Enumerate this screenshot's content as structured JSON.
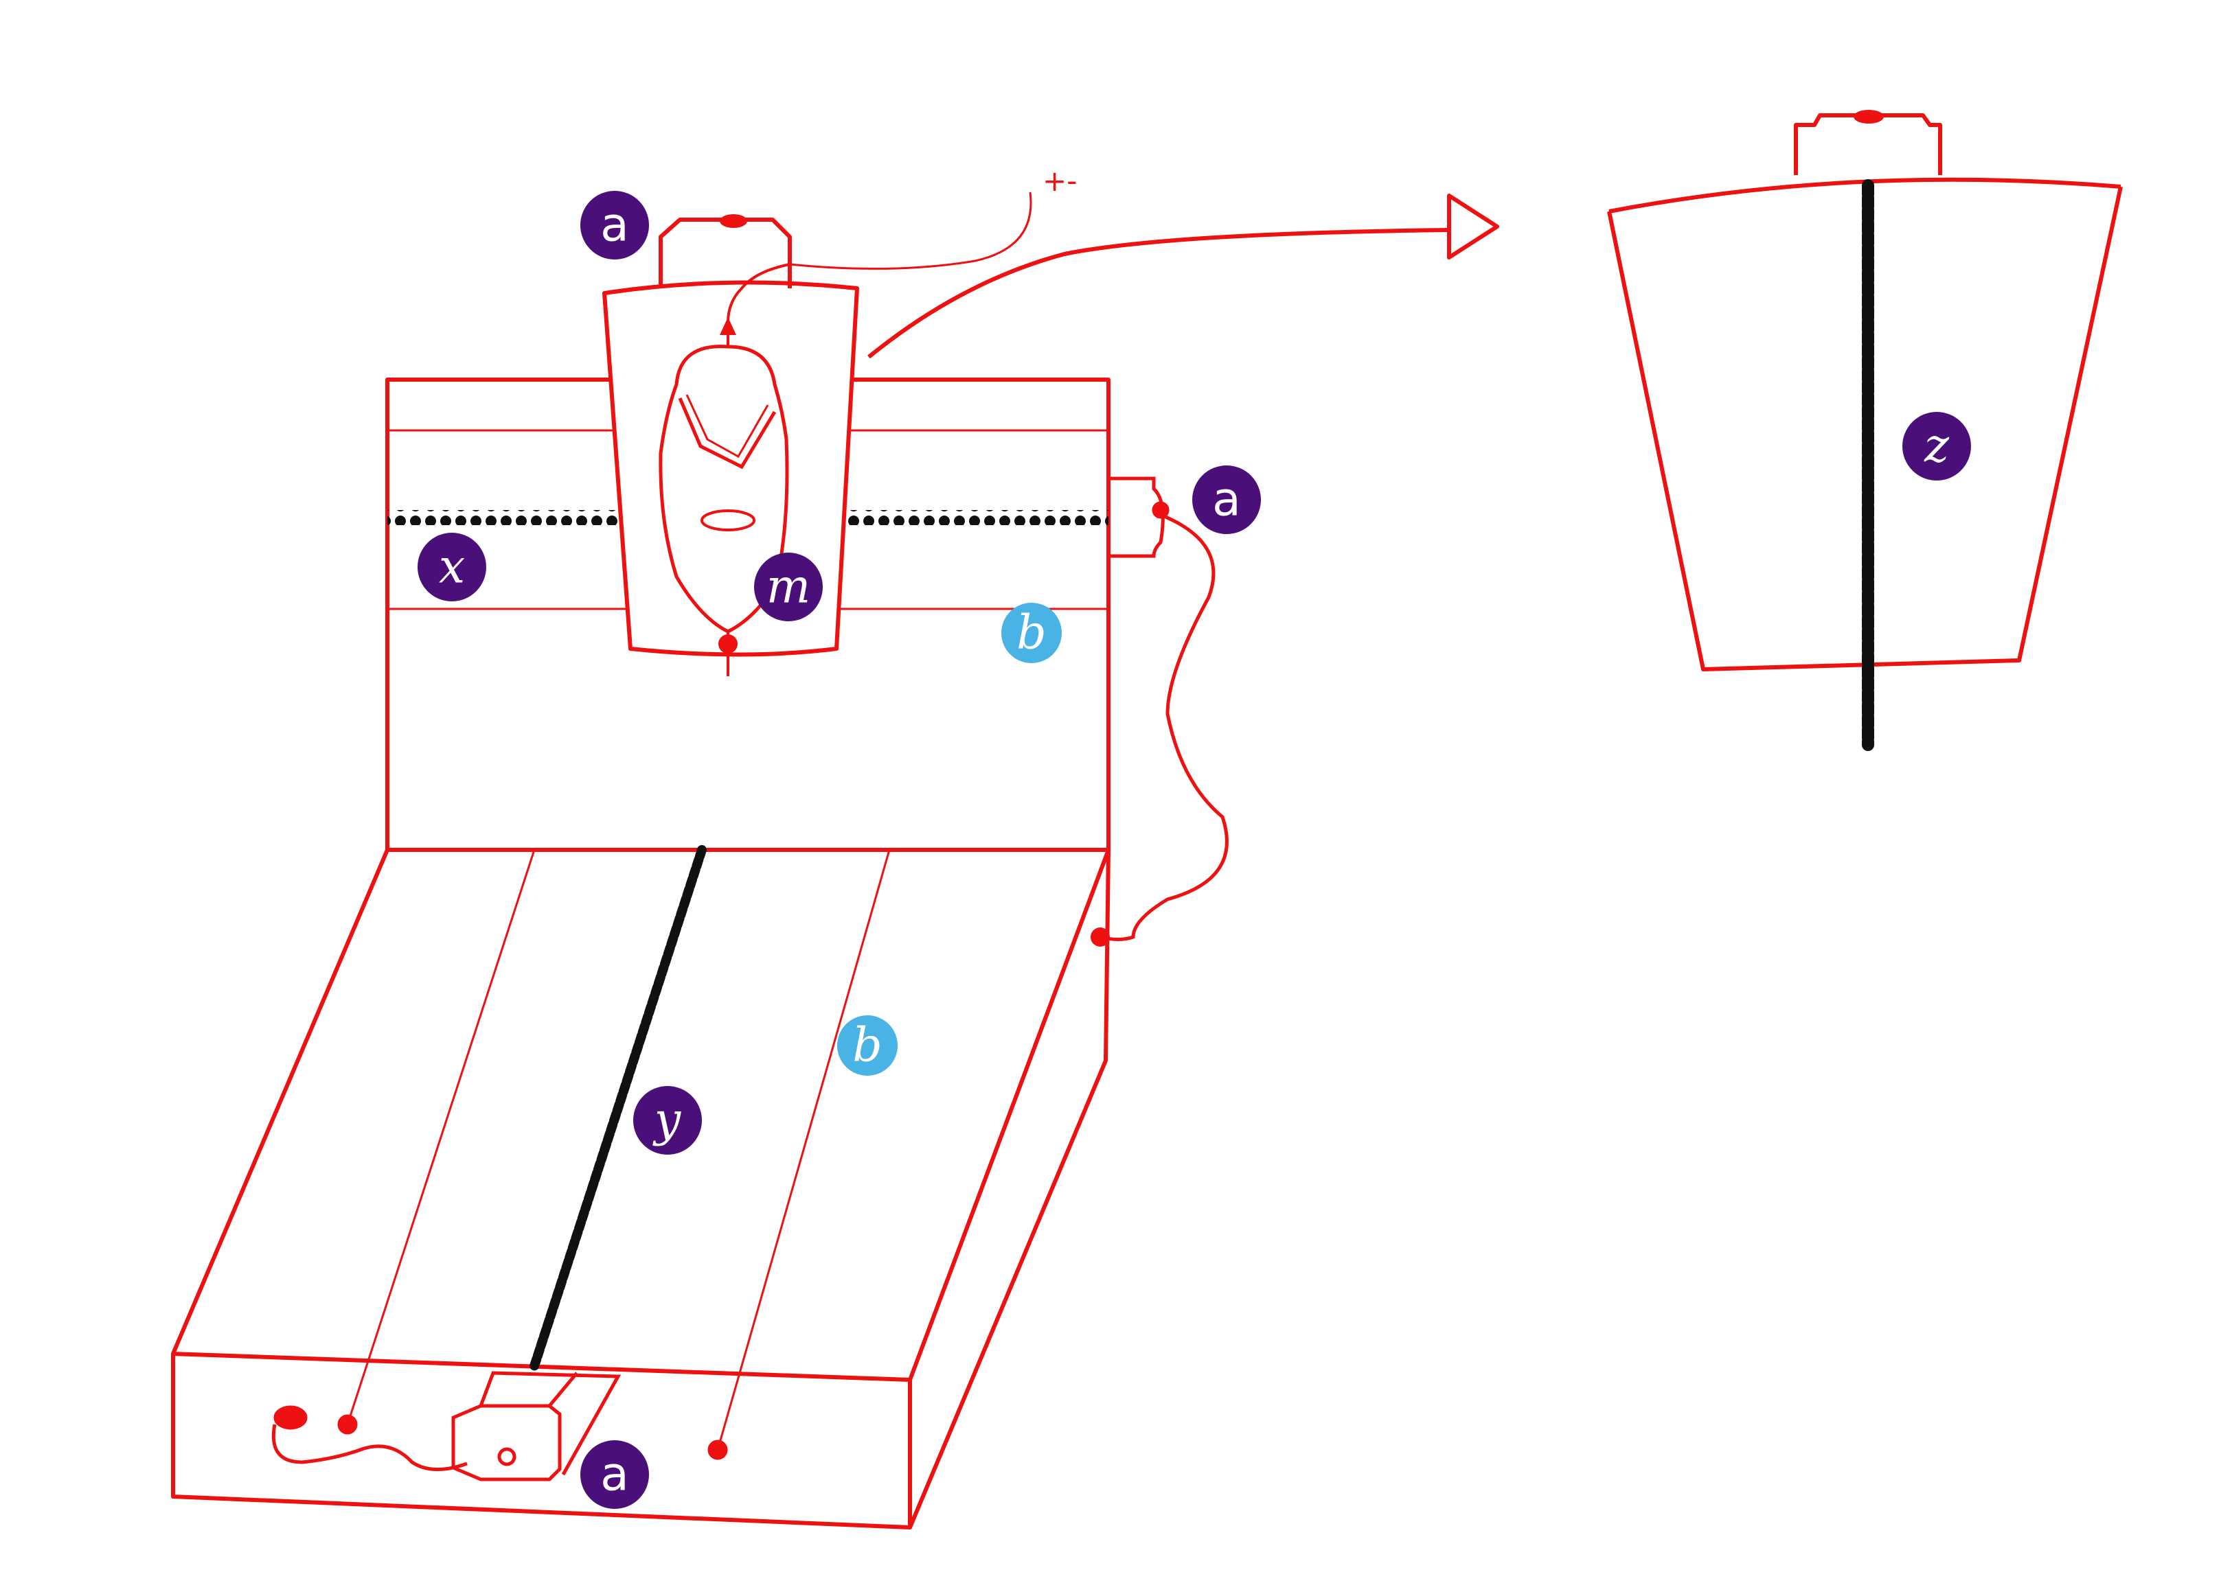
{
  "diagram": {
    "labels": [
      {
        "text": "a",
        "role": "motor"
      },
      {
        "text": "a",
        "role": "motor"
      },
      {
        "text": "a",
        "role": "motor"
      },
      {
        "text": "m",
        "role": "mouse"
      },
      {
        "text": "x",
        "role": "x-axis"
      },
      {
        "text": "y",
        "role": "y-axis"
      },
      {
        "text": "z",
        "role": "z-axis"
      },
      {
        "text": "b",
        "role": "rail"
      },
      {
        "text": "b",
        "role": "rail"
      }
    ],
    "wire_note": "+-",
    "colors": {
      "outline": "#ee1111",
      "chain": "#111111",
      "label_primary": "#4b0f7a",
      "label_secondary": "#4ab3e6"
    }
  }
}
